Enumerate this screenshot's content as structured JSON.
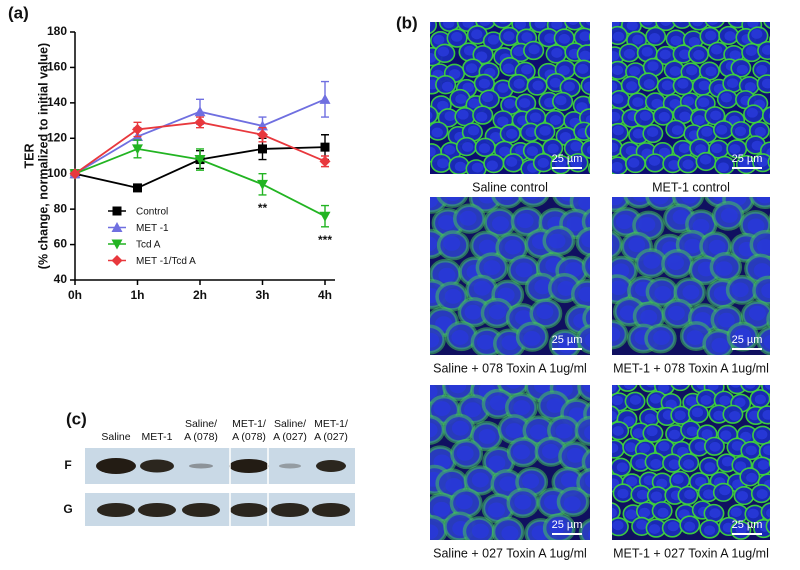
{
  "panel_labels": [
    "(a)",
    "(b)",
    "(c)"
  ],
  "chart_data": {
    "type": "line",
    "y_label": "TER",
    "y_sublabel": "(% change, normalized to initial value)",
    "categories": [
      "0h",
      "1h",
      "2h",
      "3h",
      "4h"
    ],
    "ylim": [
      40,
      180
    ],
    "yticks": [
      40,
      60,
      80,
      100,
      120,
      140,
      160,
      180
    ],
    "legend": "center-left",
    "series": [
      {
        "name": "Control",
        "color": "#000000",
        "marker": "square",
        "values": [
          100,
          92,
          108,
          114,
          115
        ],
        "errors": [
          0,
          2,
          5,
          6,
          7
        ]
      },
      {
        "name": "MET -1",
        "color": "#6f6fe0",
        "marker": "triangle-up",
        "values": [
          100,
          121,
          135,
          127,
          142
        ],
        "errors": [
          0,
          5,
          7,
          5,
          10
        ]
      },
      {
        "name": "Tcd A",
        "color": "#22b422",
        "marker": "triangle-down",
        "values": [
          100,
          114,
          108,
          94,
          76
        ],
        "errors": [
          0,
          5,
          6,
          6,
          6
        ]
      },
      {
        "name": "MET -1/Tcd A",
        "color": "#e8383d",
        "marker": "diamond",
        "values": [
          100,
          125,
          129,
          122,
          107
        ],
        "errors": [
          0,
          4,
          3,
          4,
          3
        ]
      }
    ],
    "annotations": [
      {
        "text": "**",
        "category": "3h"
      },
      {
        "text": "***",
        "category": "4h"
      }
    ]
  },
  "images": [
    {
      "caption": "Saline control",
      "scale_bar": "25 µm"
    },
    {
      "caption": "MET-1 control",
      "scale_bar": "25 µm"
    },
    {
      "caption": "Saline + 078 Toxin A 1ug/ml",
      "scale_bar": "25 µm"
    },
    {
      "caption": "MET-1 +  078 Toxin A 1ug/ml",
      "scale_bar": "25 µm"
    },
    {
      "caption": "Saline + 027 Toxin A 1ug/ml",
      "scale_bar": "25 µm"
    },
    {
      "caption": "MET-1 +  027 Toxin A 1ug/ml",
      "scale_bar": "25 µm"
    }
  ],
  "blot": {
    "columns": [
      [
        "Saline"
      ],
      [
        "MET-1"
      ],
      [
        "Saline/",
        "A (078)"
      ],
      [
        "MET-1/",
        "A (078)"
      ],
      [
        "Saline/",
        "A (027)"
      ],
      [
        "MET-1/",
        "A (027)"
      ]
    ],
    "rows": [
      "F",
      "G"
    ]
  }
}
